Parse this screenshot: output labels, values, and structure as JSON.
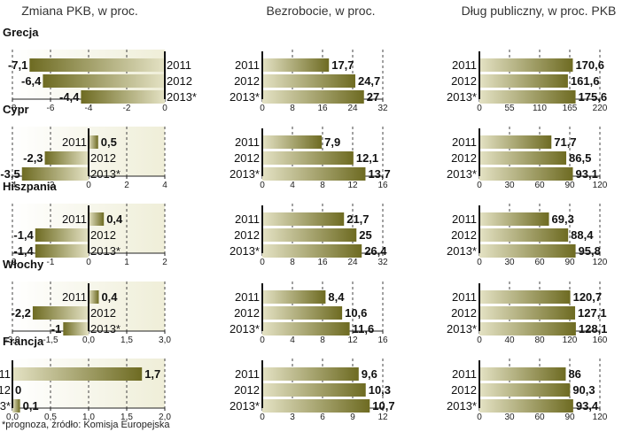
{
  "column_titles": [
    "Zmiana PKB, w proc.",
    "Bezrobocie, w proc.",
    "Dług publiczny, w proc. PKB"
  ],
  "footnote": "*prognoza, źródło: Komisja Europejska",
  "colors": {
    "bar_dark": "#6e6b22",
    "bar_light": "#e4e2c4",
    "axis": "#111111",
    "text": "#111111"
  },
  "chart_data": {
    "type": "bar",
    "orientation": "horizontal",
    "categories": [
      "2011",
      "2012",
      "2013*"
    ],
    "panels": [
      {
        "country": "Grecja",
        "gdp_change": {
          "values": [
            -7.1,
            -6.4,
            -4.4
          ],
          "labels": [
            "-7,1",
            "-6,4",
            "-4,4"
          ],
          "xlim": [
            -8,
            0
          ],
          "ticks": [
            "-8",
            "-6",
            "-4",
            "-2",
            "0"
          ]
        },
        "unemployment": {
          "values": [
            17.7,
            24.7,
            27
          ],
          "labels": [
            "17,7",
            "24,7",
            "27"
          ],
          "xlim": [
            0,
            32
          ],
          "ticks": [
            "0",
            "8",
            "16",
            "24",
            "32"
          ]
        },
        "public_debt": {
          "values": [
            170.6,
            161.6,
            175.6
          ],
          "labels": [
            "170,6",
            "161,6",
            "175,6"
          ],
          "xlim": [
            0,
            220
          ],
          "ticks": [
            "0",
            "55",
            "110",
            "165",
            "220"
          ]
        }
      },
      {
        "country": "Cypr",
        "gdp_change": {
          "values": [
            0.5,
            -2.3,
            -3.5
          ],
          "labels": [
            "0,5",
            "-2,3",
            "-3,5"
          ],
          "xlim": [
            -4,
            4
          ],
          "ticks": [
            "-4",
            "-2",
            "0",
            "2",
            "4"
          ]
        },
        "unemployment": {
          "values": [
            7.9,
            12.1,
            13.7
          ],
          "labels": [
            "7,9",
            "12,1",
            "13,7"
          ],
          "xlim": [
            0,
            16
          ],
          "ticks": [
            "0",
            "4",
            "8",
            "12",
            "16"
          ]
        },
        "public_debt": {
          "values": [
            71.7,
            86.5,
            93.1
          ],
          "labels": [
            "71,7",
            "86,5",
            "93,1"
          ],
          "xlim": [
            0,
            120
          ],
          "ticks": [
            "0",
            "30",
            "60",
            "90",
            "120"
          ]
        }
      },
      {
        "country": "Hiszpania",
        "gdp_change": {
          "values": [
            0.4,
            -1.4,
            -1.4
          ],
          "labels": [
            "0,4",
            "-1,4",
            "-1,4"
          ],
          "xlim": [
            -2,
            2
          ],
          "ticks": [
            "-2",
            "-1",
            "0",
            "1",
            "2"
          ]
        },
        "unemployment": {
          "values": [
            21.7,
            25,
            26.4
          ],
          "labels": [
            "21,7",
            "25",
            "26,4"
          ],
          "xlim": [
            0,
            32
          ],
          "ticks": [
            "0",
            "8",
            "16",
            "24",
            "32"
          ]
        },
        "public_debt": {
          "values": [
            69.3,
            88.4,
            95.8
          ],
          "labels": [
            "69,3",
            "88,4",
            "95,8"
          ],
          "xlim": [
            0,
            120
          ],
          "ticks": [
            "0",
            "30",
            "60",
            "90",
            "120"
          ]
        }
      },
      {
        "country": "Włochy",
        "gdp_change": {
          "values": [
            0.4,
            -2.2,
            -1
          ],
          "labels": [
            "0,4",
            "-2,2",
            "-1"
          ],
          "xlim": [
            -3,
            3
          ],
          "ticks": [
            "-3,0",
            "-1,5",
            "0,0",
            "1,5",
            "3,0"
          ]
        },
        "unemployment": {
          "values": [
            8.4,
            10.6,
            11.6
          ],
          "labels": [
            "8,4",
            "10,6",
            "11,6"
          ],
          "xlim": [
            0,
            16
          ],
          "ticks": [
            "0",
            "4",
            "8",
            "12",
            "16"
          ]
        },
        "public_debt": {
          "values": [
            120.7,
            127.1,
            128.1
          ],
          "labels": [
            "120,7",
            "127,1",
            "128,1"
          ],
          "xlim": [
            0,
            160
          ],
          "ticks": [
            "0",
            "40",
            "80",
            "120",
            "160"
          ]
        }
      },
      {
        "country": "Francja",
        "gdp_change": {
          "values": [
            1.7,
            0,
            0.1
          ],
          "labels": [
            "1,7",
            "0",
            "0,1"
          ],
          "xlim": [
            0,
            2
          ],
          "ticks": [
            "0,0",
            "0,5",
            "1,0",
            "1,5",
            "2,0"
          ]
        },
        "unemployment": {
          "values": [
            9.6,
            10.3,
            10.7
          ],
          "labels": [
            "9,6",
            "10,3",
            "10,7"
          ],
          "xlim": [
            0,
            12
          ],
          "ticks": [
            "0",
            "3",
            "6",
            "9",
            "12"
          ]
        },
        "public_debt": {
          "values": [
            86,
            90.3,
            93.4
          ],
          "labels": [
            "86",
            "90,3",
            "93,4"
          ],
          "xlim": [
            0,
            120
          ],
          "ticks": [
            "0",
            "30",
            "60",
            "90",
            "120"
          ]
        }
      }
    ]
  }
}
